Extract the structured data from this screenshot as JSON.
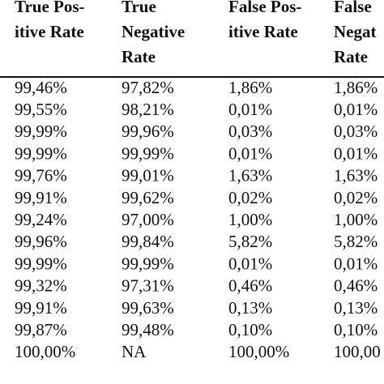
{
  "table": {
    "header": [
      [
        "True Pos-",
        "itive Rate"
      ],
      [
        "True",
        "Negative",
        "Rate"
      ],
      [
        "False Pos-",
        "itive Rate"
      ],
      [
        "False",
        "Negat",
        "Rate"
      ]
    ],
    "rows": [
      [
        "99,46%",
        "97,82%",
        "1,86%",
        "1,86%"
      ],
      [
        "99,55%",
        "98,21%",
        "0,01%",
        "0,01%"
      ],
      [
        "99,99%",
        "99,96%",
        "0,03%",
        "0,03%"
      ],
      [
        "99,99%",
        "99,99%",
        "0,01%",
        "0,01%"
      ],
      [
        "99,76%",
        "99,01%",
        "1,63%",
        "1,63%"
      ],
      [
        "99,91%",
        "99,62%",
        "0,02%",
        "0,02%"
      ],
      [
        "99,24%",
        "97,00%",
        "1,00%",
        "1,00%"
      ],
      [
        "99,96%",
        "99,84%",
        "5,82%",
        "5,82%"
      ],
      [
        "99,99%",
        "99,99%",
        "0,01%",
        "0,01%"
      ],
      [
        "99,32%",
        "97,31%",
        "0,46%",
        "0,46%"
      ],
      [
        "99,91%",
        "99,63%",
        "0,13%",
        "0,13%"
      ],
      [
        "99,87%",
        "99,48%",
        "0,10%",
        "0,10%"
      ],
      [
        "100,00%",
        "NA",
        "100,00%",
        "100,00"
      ]
    ]
  }
}
